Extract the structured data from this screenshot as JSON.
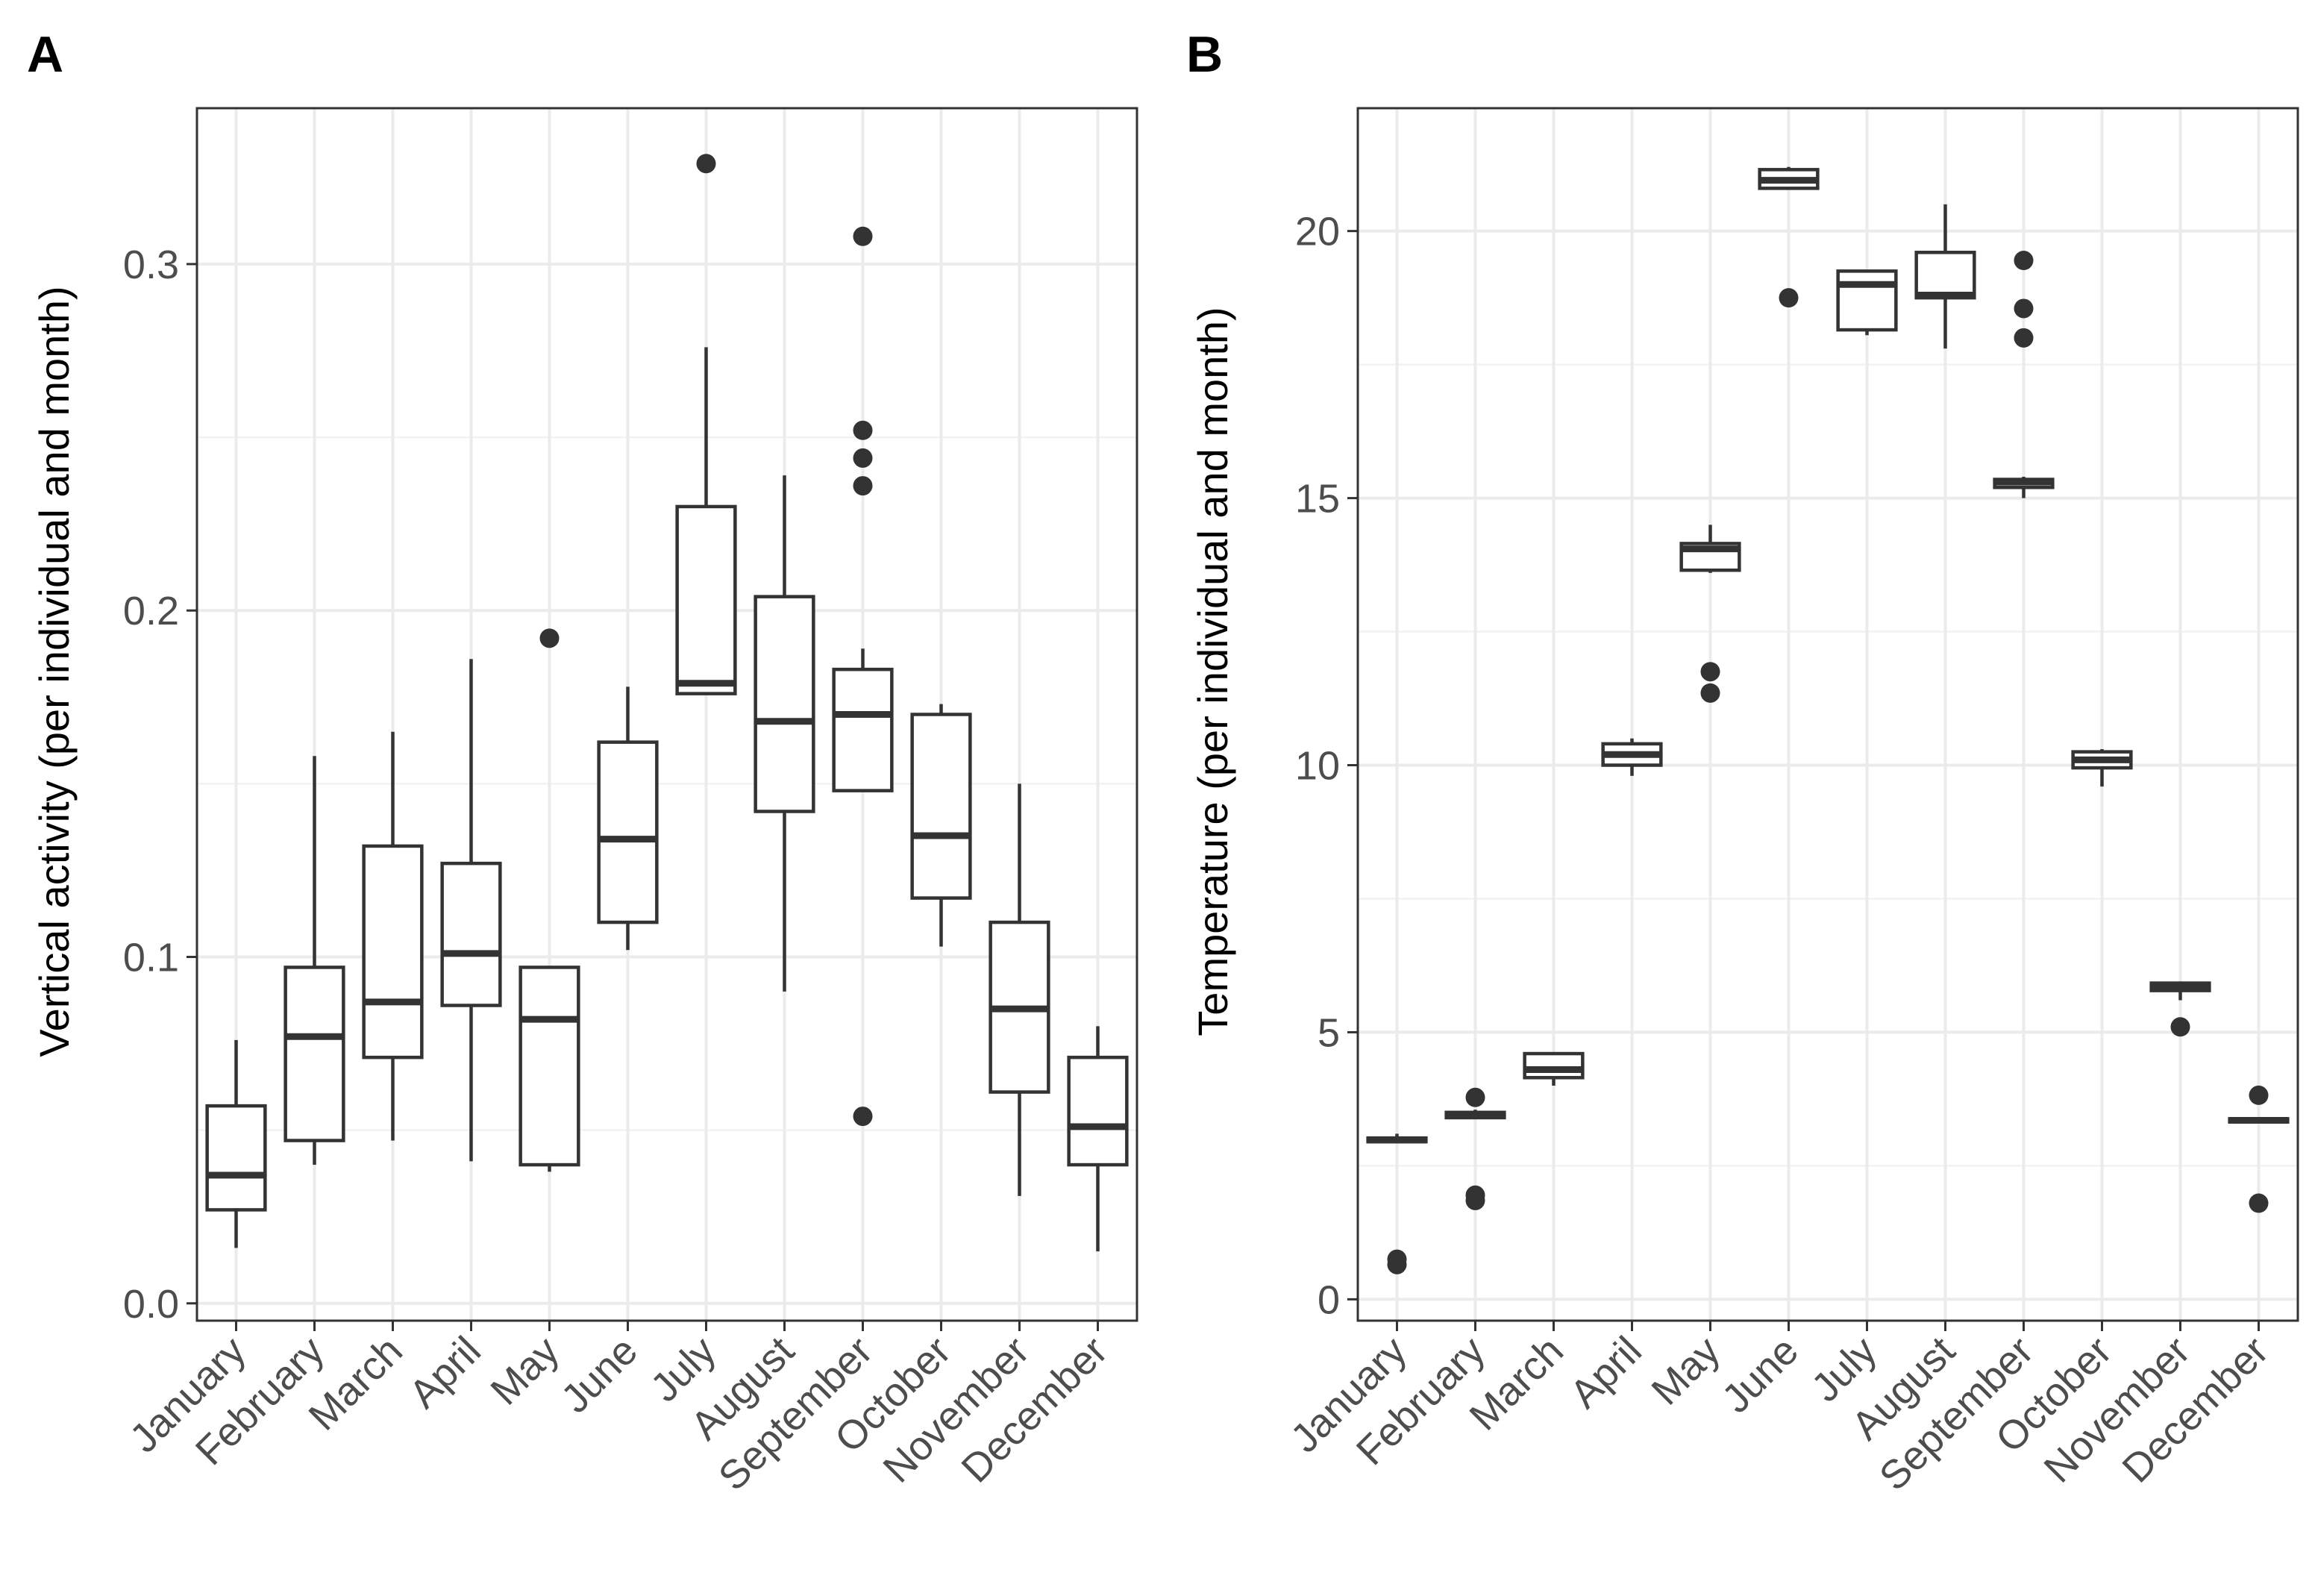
{
  "chart_data": [
    {
      "panel": "A",
      "type": "boxplot",
      "ylabel": "Vertical activity (per individual and month)",
      "xlabel": "",
      "ylim": [
        -0.005,
        0.345
      ],
      "yticks": [
        0.0,
        0.1,
        0.2,
        0.3
      ],
      "ytick_labels": [
        "0.0",
        "0.1",
        "0.2",
        "0.3"
      ],
      "minor_yticks": [
        0.05,
        0.15,
        0.25
      ],
      "grid": true,
      "categories": [
        "January",
        "February",
        "March",
        "April",
        "May",
        "June",
        "July",
        "August",
        "September",
        "October",
        "November",
        "December"
      ],
      "boxes": [
        {
          "low": 0.016,
          "q1": 0.027,
          "median": 0.037,
          "q3": 0.057,
          "high": 0.076,
          "outliers": []
        },
        {
          "low": 0.04,
          "q1": 0.047,
          "median": 0.077,
          "q3": 0.097,
          "high": 0.158,
          "outliers": []
        },
        {
          "low": 0.047,
          "q1": 0.071,
          "median": 0.087,
          "q3": 0.132,
          "high": 0.165,
          "outliers": []
        },
        {
          "low": 0.041,
          "q1": 0.086,
          "median": 0.101,
          "q3": 0.127,
          "high": 0.186,
          "outliers": []
        },
        {
          "low": 0.038,
          "q1": 0.04,
          "median": 0.082,
          "q3": 0.097,
          "high": 0.097,
          "outliers": [
            0.192
          ]
        },
        {
          "low": 0.102,
          "q1": 0.11,
          "median": 0.134,
          "q3": 0.162,
          "high": 0.178,
          "outliers": []
        },
        {
          "low": 0.176,
          "q1": 0.176,
          "median": 0.179,
          "q3": 0.23,
          "high": 0.276,
          "outliers": [
            0.329
          ]
        },
        {
          "low": 0.09,
          "q1": 0.142,
          "median": 0.168,
          "q3": 0.204,
          "high": 0.239,
          "outliers": []
        },
        {
          "low": 0.148,
          "q1": 0.148,
          "median": 0.17,
          "q3": 0.183,
          "high": 0.189,
          "outliers": [
            0.308,
            0.252,
            0.244,
            0.236,
            0.054
          ]
        },
        {
          "low": 0.103,
          "q1": 0.117,
          "median": 0.135,
          "q3": 0.17,
          "high": 0.173,
          "outliers": []
        },
        {
          "low": 0.031,
          "q1": 0.061,
          "median": 0.085,
          "q3": 0.11,
          "high": 0.15,
          "outliers": []
        },
        {
          "low": 0.015,
          "q1": 0.04,
          "median": 0.051,
          "q3": 0.071,
          "high": 0.08,
          "outliers": []
        }
      ]
    },
    {
      "panel": "B",
      "type": "boxplot",
      "ylabel": "Temperature (per individual and month)",
      "xlabel": "",
      "ylim": [
        -0.4,
        22.3
      ],
      "yticks": [
        0,
        5,
        10,
        15,
        20
      ],
      "ytick_labels": [
        "0",
        "5",
        "10",
        "15",
        "20"
      ],
      "minor_yticks": [
        2.5,
        7.5,
        12.5,
        17.5
      ],
      "grid": true,
      "categories": [
        "January",
        "February",
        "March",
        "April",
        "May",
        "June",
        "July",
        "August",
        "September",
        "October",
        "November",
        "December"
      ],
      "boxes": [
        {
          "low": 2.95,
          "q1": 2.95,
          "median": 2.98,
          "q3": 3.02,
          "high": 3.1,
          "outliers": [
            0.75,
            0.65
          ]
        },
        {
          "low": 3.4,
          "q1": 3.4,
          "median": 3.45,
          "q3": 3.5,
          "high": 3.55,
          "outliers": [
            3.78,
            1.95,
            1.85
          ]
        },
        {
          "low": 4.0,
          "q1": 4.15,
          "median": 4.3,
          "q3": 4.6,
          "high": 4.62,
          "outliers": []
        },
        {
          "low": 9.8,
          "q1": 10.0,
          "median": 10.2,
          "q3": 10.4,
          "high": 10.5,
          "outliers": []
        },
        {
          "low": 13.6,
          "q1": 13.65,
          "median": 14.05,
          "q3": 14.15,
          "high": 14.5,
          "outliers": [
            11.75,
            11.35
          ]
        },
        {
          "low": 20.8,
          "q1": 20.8,
          "median": 20.95,
          "q3": 21.15,
          "high": 21.2,
          "outliers": [
            18.75
          ]
        },
        {
          "low": 18.05,
          "q1": 18.15,
          "median": 19.0,
          "q3": 19.25,
          "high": 19.25,
          "outliers": []
        },
        {
          "low": 17.8,
          "q1": 18.75,
          "median": 18.8,
          "q3": 19.6,
          "high": 20.5,
          "outliers": []
        },
        {
          "low": 15.0,
          "q1": 15.2,
          "median": 15.3,
          "q3": 15.35,
          "high": 15.4,
          "outliers": [
            19.45,
            18.55,
            18.0
          ]
        },
        {
          "low": 9.6,
          "q1": 9.95,
          "median": 10.1,
          "q3": 10.25,
          "high": 10.3,
          "outliers": []
        },
        {
          "low": 5.6,
          "q1": 5.78,
          "median": 5.85,
          "q3": 5.92,
          "high": 5.95,
          "outliers": [
            5.1
          ]
        },
        {
          "low": 3.32,
          "q1": 3.32,
          "median": 3.35,
          "q3": 3.38,
          "high": 3.4,
          "outliers": [
            3.82,
            1.8
          ]
        }
      ]
    }
  ]
}
